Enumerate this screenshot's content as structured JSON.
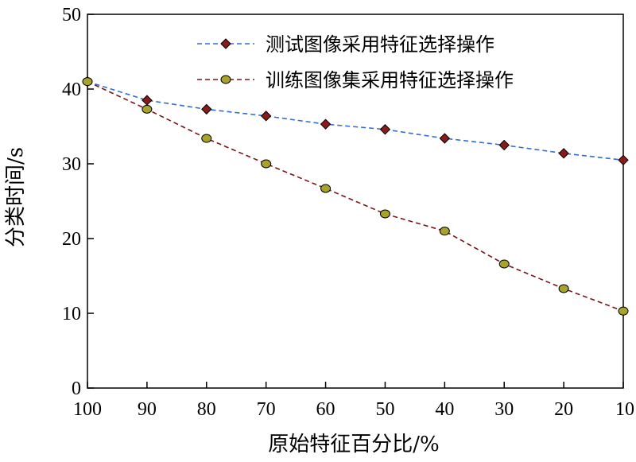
{
  "chart_data": {
    "type": "line",
    "xlabel": "原始特征百分比/%",
    "ylabel": "分类时间/s",
    "x": [
      100,
      90,
      80,
      70,
      60,
      50,
      40,
      30,
      20,
      10
    ],
    "xticks": [
      "100",
      "90",
      "80",
      "70",
      "60",
      "50",
      "40",
      "30",
      "20",
      "10"
    ],
    "yticks": [
      "0",
      "10",
      "20",
      "30",
      "40",
      "50"
    ],
    "xlim": [
      100,
      10
    ],
    "ylim": [
      0,
      50
    ],
    "x_reversed": true,
    "grid": false,
    "legend_position": "top-right",
    "series": [
      {
        "name": "测试图像采用特征选择操作",
        "values": [
          41.0,
          38.5,
          37.3,
          36.4,
          35.3,
          34.6,
          33.4,
          32.5,
          31.4,
          30.5
        ],
        "line_color": "#2f6fd6",
        "marker": "diamond",
        "marker_color": "#8b1a1a",
        "line_style": "dashed"
      },
      {
        "name": "训练图像集采用特征选择操作",
        "values": [
          41.0,
          37.3,
          33.4,
          30.0,
          26.7,
          23.3,
          21.0,
          16.6,
          13.3,
          10.3
        ],
        "line_color": "#7a1515",
        "marker": "circle",
        "marker_color": "#a8a42a",
        "line_style": "dashed"
      }
    ]
  }
}
